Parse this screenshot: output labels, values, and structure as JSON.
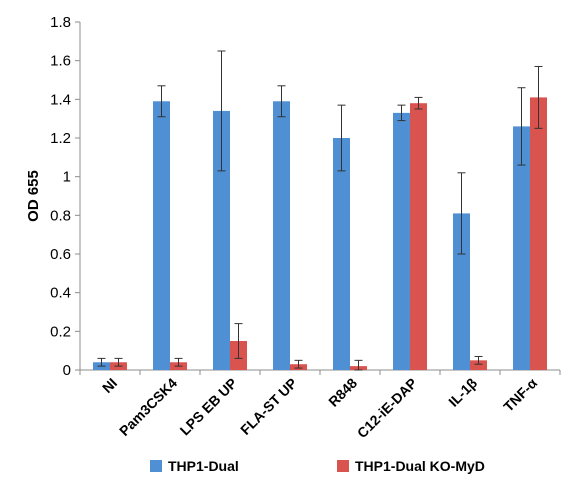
{
  "chart_data": {
    "type": "bar",
    "title": "",
    "xlabel": "",
    "ylabel": "OD 655",
    "ylim": [
      0,
      1.8
    ],
    "yticks": [
      "0",
      "0.2",
      "0.4",
      "0.6",
      "0.8",
      "1",
      "1.2",
      "1.4",
      "1.6",
      "1.8"
    ],
    "categories": [
      "NI",
      "Pam3CSK4",
      "LPS EB UP",
      "FLA-ST UP",
      "R848",
      "C12-iE-DAP",
      "IL-1β",
      "TNF-α"
    ],
    "series": [
      {
        "name": "THP1-Dual",
        "color": "#4f8fd3",
        "values": [
          0.04,
          1.39,
          1.34,
          1.39,
          1.2,
          1.33,
          0.81,
          1.26
        ],
        "error": [
          0.02,
          0.08,
          0.31,
          0.08,
          0.17,
          0.04,
          0.21,
          0.2
        ]
      },
      {
        "name": "THP1-Dual KO-MyD",
        "color": "#d9534f",
        "values": [
          0.04,
          0.04,
          0.15,
          0.03,
          0.02,
          1.38,
          0.05,
          1.41
        ],
        "error": [
          0.02,
          0.02,
          0.09,
          0.02,
          0.03,
          0.03,
          0.02,
          0.16
        ]
      }
    ],
    "grid": false,
    "legend_position": "bottom"
  }
}
